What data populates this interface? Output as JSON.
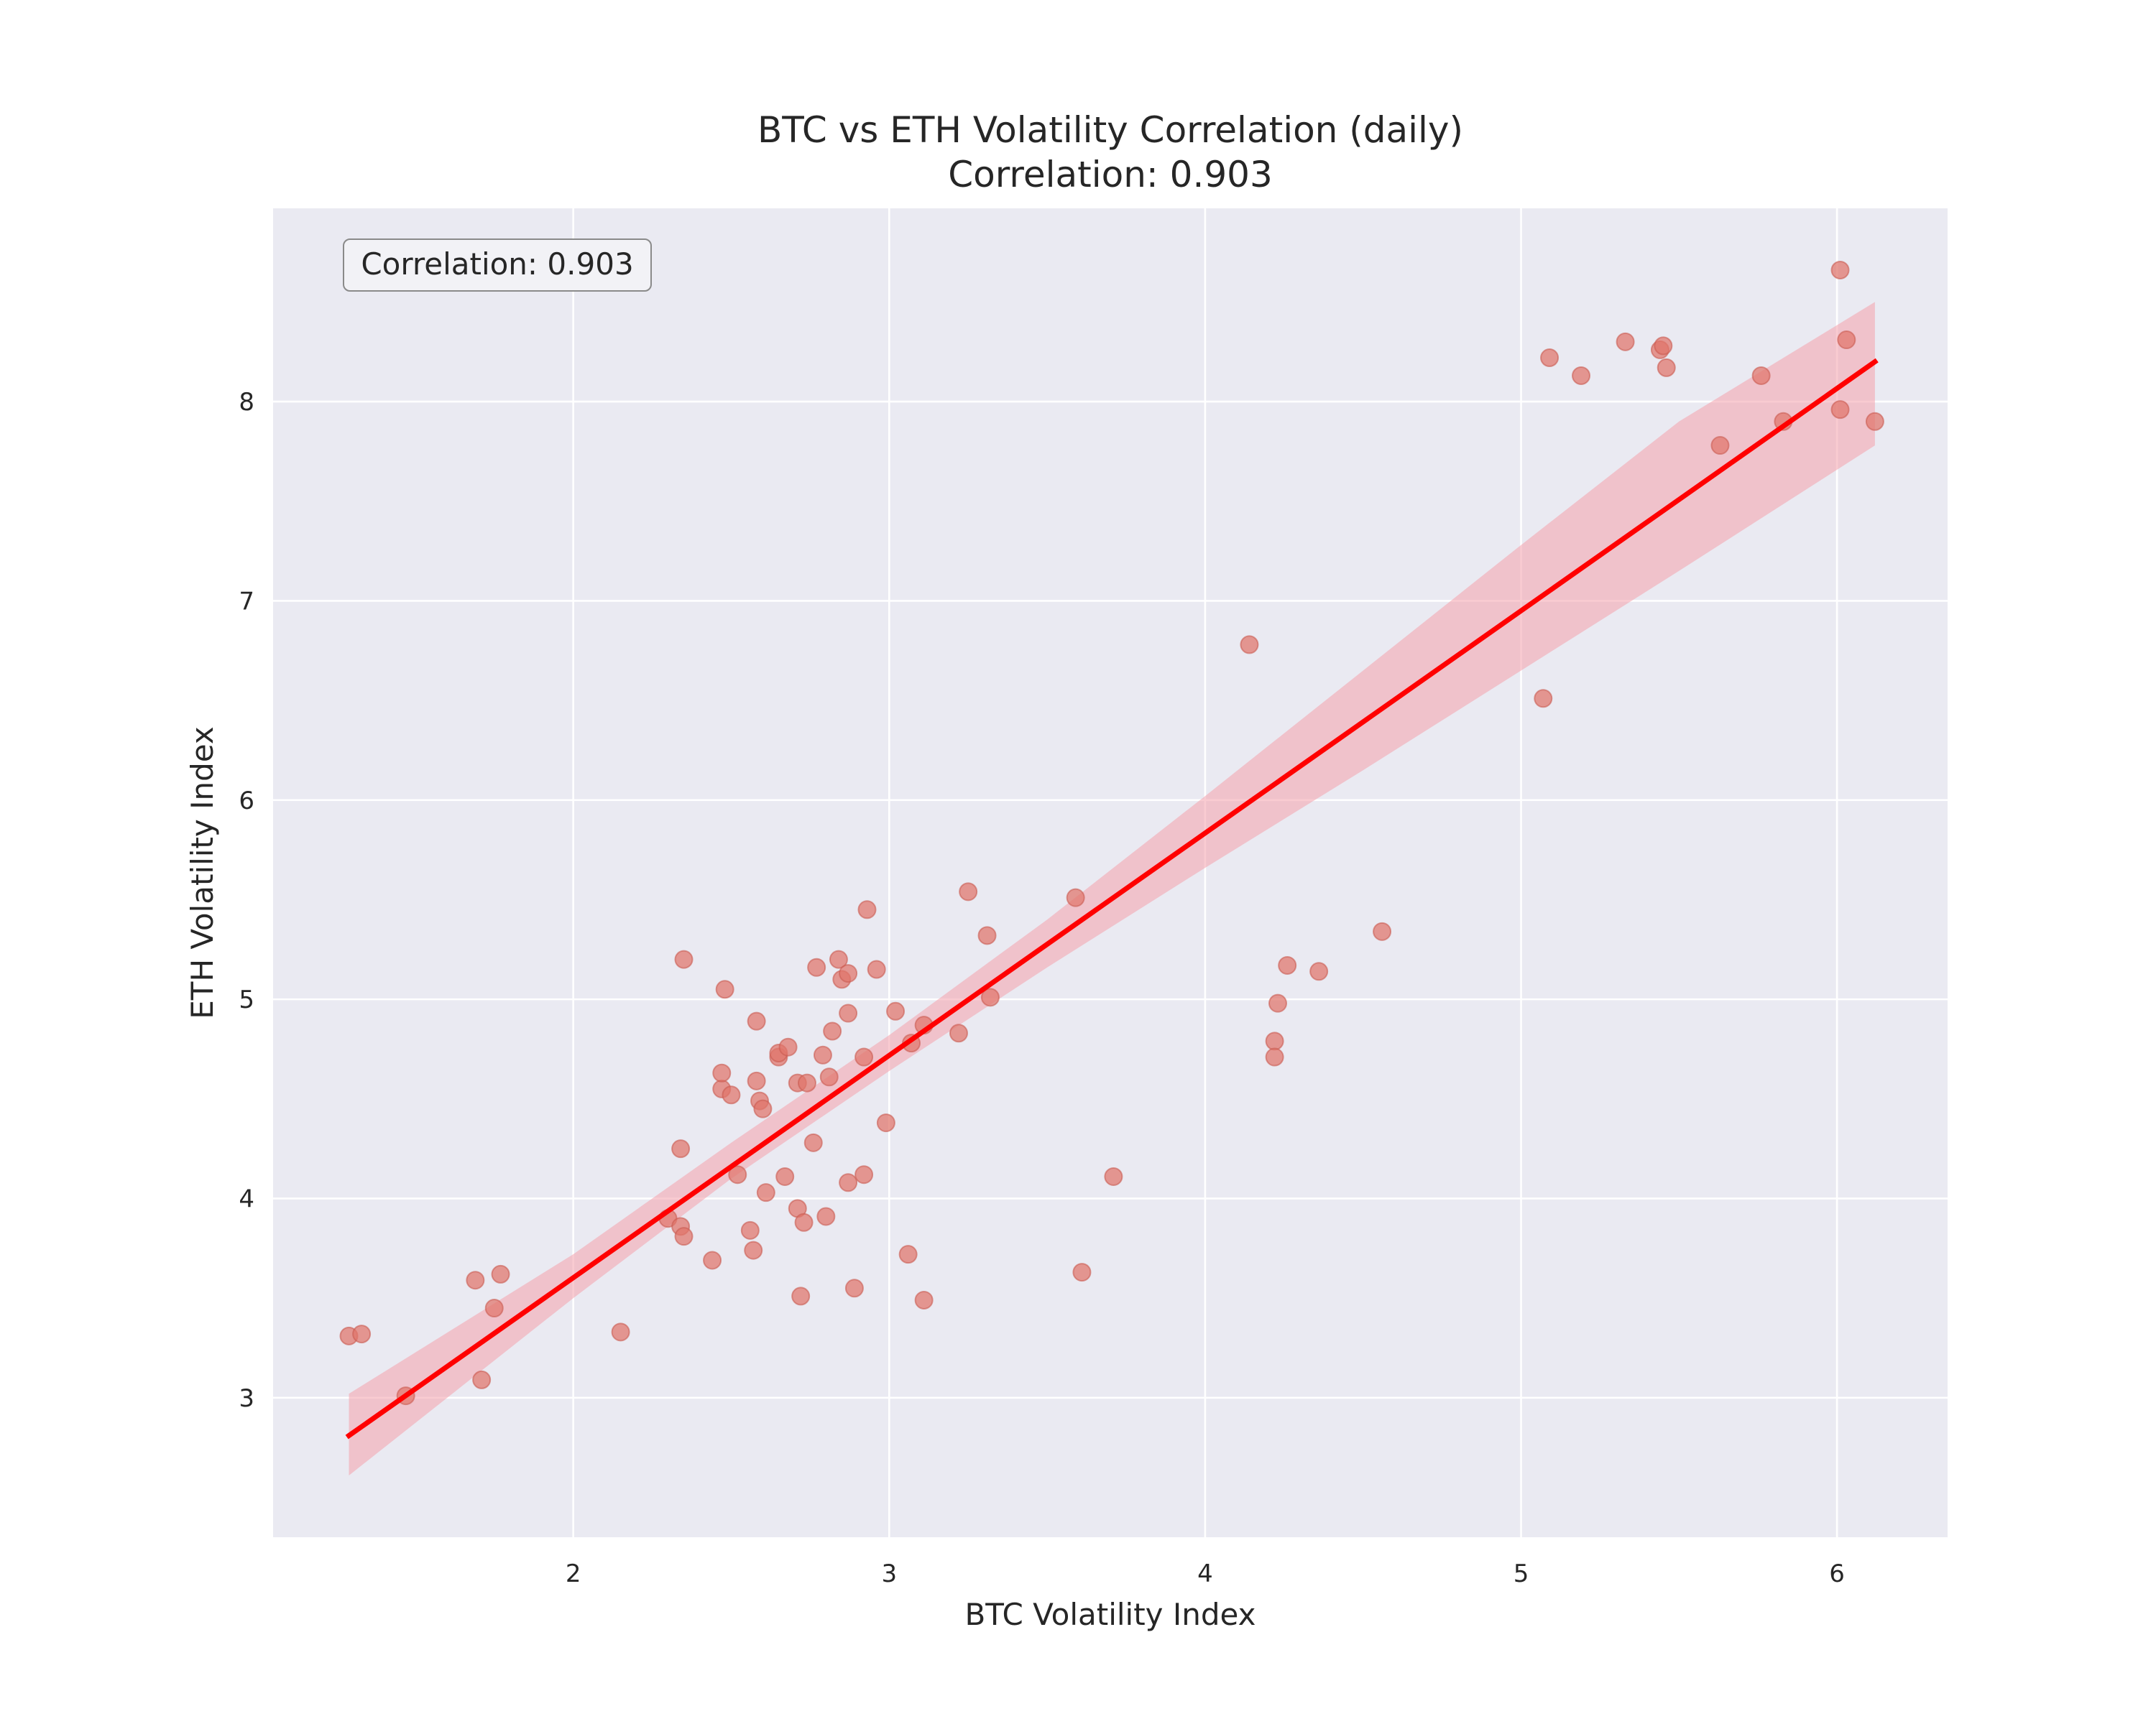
{
  "chart_data": {
    "type": "scatter",
    "title": "BTC vs ETH Volatility Correlation (daily)",
    "subtitle": "Correlation: 0.903",
    "annotation": "Correlation: 0.903",
    "xlabel": "BTC Volatility Index",
    "ylabel": "ETH Volatility Index",
    "xlim": [
      1.05,
      6.35
    ],
    "ylim": [
      2.3,
      8.97
    ],
    "xticks": [
      2,
      3,
      4,
      5,
      6
    ],
    "yticks": [
      3,
      4,
      5,
      6,
      7,
      8
    ],
    "grid": true,
    "background": "#eaeaf2",
    "colors": {
      "points": "#e0756a",
      "regression_line": "#ff0000",
      "confidence_band": "#f4a0ac"
    },
    "regression": {
      "x_start": 1.29,
      "y_start": 2.81,
      "x_end": 6.12,
      "y_end": 8.2
    },
    "confidence_band": [
      {
        "x": 1.29,
        "lower": 2.61,
        "upper": 3.02
      },
      {
        "x": 2.0,
        "lower": 3.5,
        "upper": 3.72
      },
      {
        "x": 2.5,
        "lower": 4.1,
        "upper": 4.28
      },
      {
        "x": 3.0,
        "lower": 4.64,
        "upper": 4.82
      },
      {
        "x": 3.5,
        "lower": 5.16,
        "upper": 5.4
      },
      {
        "x": 4.0,
        "lower": 5.66,
        "upper": 6.02
      },
      {
        "x": 4.5,
        "lower": 6.15,
        "upper": 6.65
      },
      {
        "x": 5.0,
        "lower": 6.65,
        "upper": 7.28
      },
      {
        "x": 5.5,
        "lower": 7.15,
        "upper": 7.9
      },
      {
        "x": 6.12,
        "lower": 7.78,
        "upper": 8.5
      }
    ],
    "points": [
      {
        "x": 1.29,
        "y": 3.31
      },
      {
        "x": 1.33,
        "y": 3.32
      },
      {
        "x": 1.47,
        "y": 3.01
      },
      {
        "x": 1.69,
        "y": 3.59
      },
      {
        "x": 1.71,
        "y": 3.09
      },
      {
        "x": 1.75,
        "y": 3.45
      },
      {
        "x": 1.77,
        "y": 3.62
      },
      {
        "x": 2.15,
        "y": 3.33
      },
      {
        "x": 2.3,
        "y": 3.9
      },
      {
        "x": 2.34,
        "y": 3.86
      },
      {
        "x": 2.35,
        "y": 3.81
      },
      {
        "x": 2.34,
        "y": 4.25
      },
      {
        "x": 2.35,
        "y": 5.2
      },
      {
        "x": 2.44,
        "y": 3.69
      },
      {
        "x": 2.47,
        "y": 4.55
      },
      {
        "x": 2.47,
        "y": 4.63
      },
      {
        "x": 2.48,
        "y": 5.05
      },
      {
        "x": 2.5,
        "y": 4.52
      },
      {
        "x": 2.52,
        "y": 4.12
      },
      {
        "x": 2.56,
        "y": 3.84
      },
      {
        "x": 2.57,
        "y": 3.74
      },
      {
        "x": 2.58,
        "y": 4.89
      },
      {
        "x": 2.58,
        "y": 4.59
      },
      {
        "x": 2.59,
        "y": 4.49
      },
      {
        "x": 2.6,
        "y": 4.45
      },
      {
        "x": 2.61,
        "y": 4.03
      },
      {
        "x": 2.65,
        "y": 4.71
      },
      {
        "x": 2.65,
        "y": 4.73
      },
      {
        "x": 2.67,
        "y": 4.11
      },
      {
        "x": 2.68,
        "y": 4.76
      },
      {
        "x": 2.71,
        "y": 4.58
      },
      {
        "x": 2.71,
        "y": 3.95
      },
      {
        "x": 2.72,
        "y": 3.51
      },
      {
        "x": 2.73,
        "y": 3.88
      },
      {
        "x": 2.74,
        "y": 4.58
      },
      {
        "x": 2.76,
        "y": 4.28
      },
      {
        "x": 2.77,
        "y": 5.16
      },
      {
        "x": 2.79,
        "y": 4.72
      },
      {
        "x": 2.8,
        "y": 3.91
      },
      {
        "x": 2.81,
        "y": 4.61
      },
      {
        "x": 2.82,
        "y": 4.84
      },
      {
        "x": 2.84,
        "y": 5.2
      },
      {
        "x": 2.85,
        "y": 5.1
      },
      {
        "x": 2.87,
        "y": 5.13
      },
      {
        "x": 2.87,
        "y": 4.93
      },
      {
        "x": 2.87,
        "y": 4.08
      },
      {
        "x": 2.89,
        "y": 3.55
      },
      {
        "x": 2.92,
        "y": 4.12
      },
      {
        "x": 2.92,
        "y": 4.71
      },
      {
        "x": 2.93,
        "y": 5.45
      },
      {
        "x": 2.96,
        "y": 5.15
      },
      {
        "x": 2.99,
        "y": 4.38
      },
      {
        "x": 3.02,
        "y": 4.94
      },
      {
        "x": 3.06,
        "y": 3.72
      },
      {
        "x": 3.07,
        "y": 4.78
      },
      {
        "x": 3.11,
        "y": 4.87
      },
      {
        "x": 3.11,
        "y": 3.49
      },
      {
        "x": 3.22,
        "y": 4.83
      },
      {
        "x": 3.25,
        "y": 5.54
      },
      {
        "x": 3.31,
        "y": 5.32
      },
      {
        "x": 3.32,
        "y": 5.01
      },
      {
        "x": 3.59,
        "y": 5.51
      },
      {
        "x": 3.61,
        "y": 3.63
      },
      {
        "x": 3.71,
        "y": 4.11
      },
      {
        "x": 4.14,
        "y": 6.78
      },
      {
        "x": 4.22,
        "y": 4.79
      },
      {
        "x": 4.23,
        "y": 4.98
      },
      {
        "x": 4.22,
        "y": 4.71
      },
      {
        "x": 4.26,
        "y": 5.17
      },
      {
        "x": 4.36,
        "y": 5.14
      },
      {
        "x": 4.56,
        "y": 5.34
      },
      {
        "x": 5.07,
        "y": 6.51
      },
      {
        "x": 5.09,
        "y": 8.22
      },
      {
        "x": 5.19,
        "y": 8.13
      },
      {
        "x": 5.33,
        "y": 8.3
      },
      {
        "x": 5.44,
        "y": 8.26
      },
      {
        "x": 5.45,
        "y": 8.28
      },
      {
        "x": 5.46,
        "y": 8.17
      },
      {
        "x": 5.63,
        "y": 7.78
      },
      {
        "x": 5.76,
        "y": 8.13
      },
      {
        "x": 5.83,
        "y": 7.9
      },
      {
        "x": 6.01,
        "y": 8.66
      },
      {
        "x": 6.01,
        "y": 7.96
      },
      {
        "x": 6.03,
        "y": 8.31
      },
      {
        "x": 6.12,
        "y": 7.9
      }
    ]
  }
}
